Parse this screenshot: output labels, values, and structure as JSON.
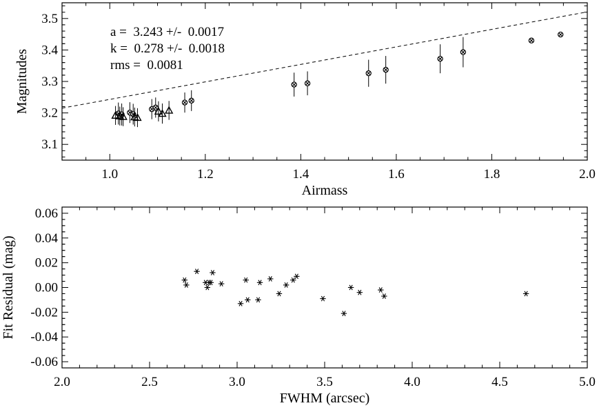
{
  "chart_data": [
    {
      "type": "scatter",
      "xlabel": "Airmass",
      "ylabel": "Magnitudes",
      "xlim": [
        0.9,
        2.0
      ],
      "ylim": [
        3.05,
        3.55
      ],
      "xticks": [
        "1.0",
        "1.2",
        "1.4",
        "1.6",
        "1.8",
        "2.0"
      ],
      "yticks": [
        "3.1",
        "3.2",
        "3.3",
        "3.4",
        "3.5"
      ],
      "annotations": [
        "a =  3.243 +/-  0.0017",
        "k =  0.278 +/-  0.0018",
        "rms =  0.0081"
      ],
      "fit_line": {
        "style": "dashed",
        "intercept": 3.243,
        "slope": 0.278
      },
      "series": [
        {
          "marker": "circle-x",
          "points": [
            {
              "x": 1.018,
              "y": 3.198,
              "err": 0.035
            },
            {
              "x": 1.025,
              "y": 3.195,
              "err": 0.035
            },
            {
              "x": 1.042,
              "y": 3.201,
              "err": 0.033
            },
            {
              "x": 1.049,
              "y": 3.196,
              "err": 0.033
            },
            {
              "x": 1.088,
              "y": 3.212,
              "err": 0.032
            },
            {
              "x": 1.096,
              "y": 3.217,
              "err": 0.032
            },
            {
              "x": 1.157,
              "y": 3.233,
              "err": 0.032
            },
            {
              "x": 1.171,
              "y": 3.239,
              "err": 0.033
            },
            {
              "x": 1.386,
              "y": 3.29,
              "err": 0.038
            },
            {
              "x": 1.414,
              "y": 3.294,
              "err": 0.038
            },
            {
              "x": 1.542,
              "y": 3.326,
              "err": 0.043
            },
            {
              "x": 1.578,
              "y": 3.337,
              "err": 0.044
            },
            {
              "x": 1.692,
              "y": 3.372,
              "err": 0.046
            },
            {
              "x": 1.74,
              "y": 3.393,
              "err": 0.048
            },
            {
              "x": 1.883,
              "y": 3.43,
              "err": 0.008
            },
            {
              "x": 1.944,
              "y": 3.449,
              "err": 0.008
            }
          ]
        },
        {
          "marker": "triangle",
          "points": [
            {
              "x": 1.012,
              "y": 3.192,
              "err": 0.03
            },
            {
              "x": 1.021,
              "y": 3.19,
              "err": 0.03
            },
            {
              "x": 1.028,
              "y": 3.188,
              "err": 0.03
            },
            {
              "x": 1.052,
              "y": 3.187,
              "err": 0.03
            },
            {
              "x": 1.058,
              "y": 3.185,
              "err": 0.03
            },
            {
              "x": 1.102,
              "y": 3.205,
              "err": 0.032
            },
            {
              "x": 1.11,
              "y": 3.198,
              "err": 0.032
            },
            {
              "x": 1.124,
              "y": 3.208,
              "err": 0.03
            }
          ]
        }
      ]
    },
    {
      "type": "scatter",
      "xlabel": "FWHM (arcsec)",
      "ylabel": "Fit Residual (mag)",
      "xlim": [
        2.0,
        5.0
      ],
      "ylim": [
        -0.065,
        0.065
      ],
      "xticks": [
        "2.0",
        "2.5",
        "3.0",
        "3.5",
        "4.0",
        "4.5",
        "5.0"
      ],
      "yticks": [
        "-0.06",
        "-0.04",
        "-0.02",
        "0.00",
        "0.02",
        "0.04",
        "0.06"
      ],
      "series": [
        {
          "marker": "asterisk",
          "points": [
            {
              "x": 2.7,
              "y": 0.006
            },
            {
              "x": 2.71,
              "y": 0.002
            },
            {
              "x": 2.77,
              "y": 0.013
            },
            {
              "x": 2.82,
              "y": 0.004
            },
            {
              "x": 2.83,
              "y": 0.0
            },
            {
              "x": 2.84,
              "y": 0.004
            },
            {
              "x": 2.85,
              "y": 0.004
            },
            {
              "x": 2.86,
              "y": 0.012
            },
            {
              "x": 2.91,
              "y": 0.003
            },
            {
              "x": 3.02,
              "y": -0.013
            },
            {
              "x": 3.05,
              "y": 0.006
            },
            {
              "x": 3.06,
              "y": -0.01
            },
            {
              "x": 3.12,
              "y": -0.01
            },
            {
              "x": 3.13,
              "y": 0.004
            },
            {
              "x": 3.19,
              "y": 0.007
            },
            {
              "x": 3.24,
              "y": -0.005
            },
            {
              "x": 3.28,
              "y": 0.002
            },
            {
              "x": 3.32,
              "y": 0.006
            },
            {
              "x": 3.34,
              "y": 0.009
            },
            {
              "x": 3.49,
              "y": -0.009
            },
            {
              "x": 3.61,
              "y": -0.021
            },
            {
              "x": 3.65,
              "y": 0.0
            },
            {
              "x": 3.7,
              "y": -0.004
            },
            {
              "x": 3.82,
              "y": -0.002
            },
            {
              "x": 3.84,
              "y": -0.007
            },
            {
              "x": 4.65,
              "y": -0.005
            }
          ]
        }
      ]
    }
  ]
}
